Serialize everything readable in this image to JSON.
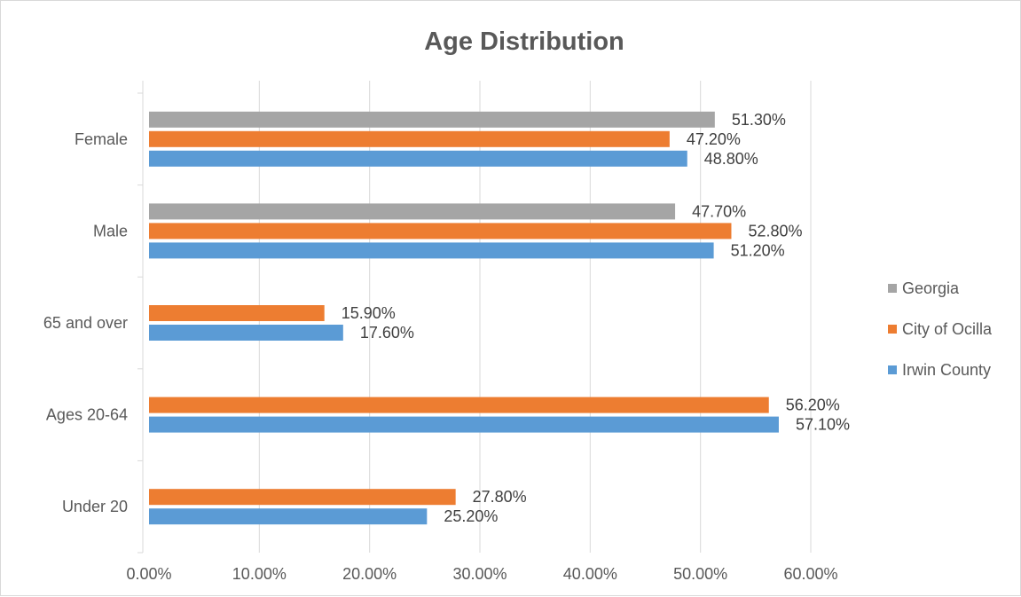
{
  "chart_data": {
    "type": "bar",
    "orientation": "horizontal",
    "title": "Age Distribution",
    "categories": [
      "Female",
      "Male",
      "65 and over",
      "Ages 20-64",
      "Under 20"
    ],
    "series": [
      {
        "name": "Georgia",
        "color": "#a5a5a5",
        "values": [
          51.3,
          47.7,
          null,
          null,
          null
        ],
        "labels": [
          "51.30%",
          "47.70%",
          null,
          null,
          null
        ]
      },
      {
        "name": "City of Ocilla",
        "color": "#ed7d31",
        "values": [
          47.2,
          52.8,
          15.9,
          56.2,
          27.8
        ],
        "labels": [
          "47.20%",
          "52.80%",
          "15.90%",
          "56.20%",
          "27.80%"
        ]
      },
      {
        "name": "Irwin County",
        "color": "#5b9bd5",
        "values": [
          48.8,
          51.2,
          17.6,
          57.1,
          25.2
        ],
        "labels": [
          "48.80%",
          "51.20%",
          "17.60%",
          "57.10%",
          "25.20%"
        ]
      }
    ],
    "xlim": [
      0,
      60
    ],
    "xticks": [
      "0.00%",
      "10.00%",
      "20.00%",
      "30.00%",
      "40.00%",
      "50.00%",
      "60.00%"
    ],
    "grid": true,
    "legend_position": "right"
  }
}
